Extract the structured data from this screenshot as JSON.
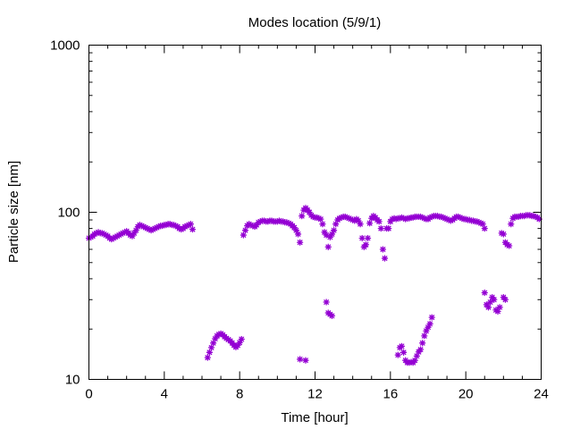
{
  "chart_data": {
    "type": "scatter",
    "title": "Modes location (5/9/1)",
    "xlabel": "Time [hour]",
    "ylabel": "Particle size [nm]",
    "xlim": [
      0,
      24
    ],
    "ylim": [
      10,
      1000
    ],
    "yscale": "log",
    "xticks": [
      0,
      4,
      8,
      12,
      16,
      20,
      24
    ],
    "xtick_labels": [
      "0",
      "4",
      "8",
      "12",
      "16",
      "20",
      "24"
    ],
    "yticks": [
      10,
      100,
      1000
    ],
    "ytick_labels": [
      "10",
      "100",
      "1000"
    ],
    "grid": false,
    "legend": "none",
    "marker": "asterisk",
    "color": "#9400d3",
    "points": [
      [
        0.0,
        70
      ],
      [
        0.1,
        71
      ],
      [
        0.2,
        72
      ],
      [
        0.3,
        74
      ],
      [
        0.4,
        75
      ],
      [
        0.5,
        76
      ],
      [
        0.6,
        75
      ],
      [
        0.7,
        75
      ],
      [
        0.8,
        74
      ],
      [
        0.9,
        73
      ],
      [
        1.0,
        72
      ],
      [
        1.1,
        70
      ],
      [
        1.2,
        69
      ],
      [
        1.3,
        70
      ],
      [
        1.4,
        71
      ],
      [
        1.5,
        72
      ],
      [
        1.6,
        73
      ],
      [
        1.7,
        74
      ],
      [
        1.8,
        75
      ],
      [
        1.9,
        76
      ],
      [
        2.0,
        77
      ],
      [
        2.1,
        75
      ],
      [
        2.2,
        73
      ],
      [
        2.3,
        72
      ],
      [
        2.4,
        75
      ],
      [
        2.5,
        78
      ],
      [
        2.6,
        82
      ],
      [
        2.7,
        84
      ],
      [
        2.8,
        83
      ],
      [
        2.9,
        82
      ],
      [
        3.0,
        81
      ],
      [
        3.1,
        80
      ],
      [
        3.2,
        79
      ],
      [
        3.3,
        78
      ],
      [
        3.4,
        79
      ],
      [
        3.5,
        80
      ],
      [
        3.6,
        81
      ],
      [
        3.7,
        82
      ],
      [
        3.8,
        83
      ],
      [
        3.9,
        83
      ],
      [
        4.0,
        84
      ],
      [
        4.1,
        84
      ],
      [
        4.2,
        85
      ],
      [
        4.3,
        85
      ],
      [
        4.4,
        84
      ],
      [
        4.5,
        84
      ],
      [
        4.6,
        83
      ],
      [
        4.7,
        82
      ],
      [
        4.8,
        80
      ],
      [
        4.9,
        79
      ],
      [
        5.0,
        80
      ],
      [
        5.1,
        82
      ],
      [
        5.2,
        83
      ],
      [
        5.3,
        84
      ],
      [
        5.4,
        85
      ],
      [
        5.5,
        79
      ],
      [
        6.3,
        13.5
      ],
      [
        6.4,
        14.5
      ],
      [
        6.5,
        15.5
      ],
      [
        6.6,
        16.5
      ],
      [
        6.7,
        17.5
      ],
      [
        6.8,
        18.2
      ],
      [
        6.9,
        18.6
      ],
      [
        7.0,
        18.8
      ],
      [
        7.1,
        18.5
      ],
      [
        7.2,
        18
      ],
      [
        7.3,
        17.6
      ],
      [
        7.4,
        17.3
      ],
      [
        7.5,
        17
      ],
      [
        7.6,
        16.5
      ],
      [
        7.7,
        16
      ],
      [
        7.8,
        15.6
      ],
      [
        7.9,
        16
      ],
      [
        8.0,
        16.6
      ],
      [
        8.1,
        17.4
      ],
      [
        8.2,
        73
      ],
      [
        8.3,
        78
      ],
      [
        8.4,
        83
      ],
      [
        8.5,
        85
      ],
      [
        8.6,
        84
      ],
      [
        8.7,
        83
      ],
      [
        8.8,
        82
      ],
      [
        8.9,
        84
      ],
      [
        9.0,
        87
      ],
      [
        9.1,
        88
      ],
      [
        9.2,
        89
      ],
      [
        9.3,
        89
      ],
      [
        9.4,
        88
      ],
      [
        9.5,
        88
      ],
      [
        9.6,
        89
      ],
      [
        9.7,
        89
      ],
      [
        9.8,
        88
      ],
      [
        9.9,
        88
      ],
      [
        10.0,
        88
      ],
      [
        10.1,
        89
      ],
      [
        10.2,
        88
      ],
      [
        10.3,
        88
      ],
      [
        10.4,
        87
      ],
      [
        10.5,
        87
      ],
      [
        10.6,
        86
      ],
      [
        10.7,
        85
      ],
      [
        10.8,
        83
      ],
      [
        10.9,
        81
      ],
      [
        11.0,
        78
      ],
      [
        11.1,
        74
      ],
      [
        11.2,
        66
      ],
      [
        11.3,
        95
      ],
      [
        11.4,
        103
      ],
      [
        11.5,
        106
      ],
      [
        11.6,
        103
      ],
      [
        11.7,
        100
      ],
      [
        11.8,
        96
      ],
      [
        11.9,
        94
      ],
      [
        12.0,
        93
      ],
      [
        12.1,
        93
      ],
      [
        12.2,
        92
      ],
      [
        12.3,
        91
      ],
      [
        12.4,
        85
      ],
      [
        12.5,
        76
      ],
      [
        12.6,
        73
      ],
      [
        12.7,
        62
      ],
      [
        12.8,
        71
      ],
      [
        12.9,
        74
      ],
      [
        13.0,
        78
      ],
      [
        13.1,
        85
      ],
      [
        13.2,
        90
      ],
      [
        13.3,
        92
      ],
      [
        13.4,
        93
      ],
      [
        13.5,
        94
      ],
      [
        13.6,
        94
      ],
      [
        13.7,
        93
      ],
      [
        13.8,
        92
      ],
      [
        13.9,
        91
      ],
      [
        14.0,
        90
      ],
      [
        14.1,
        89
      ],
      [
        14.2,
        91
      ],
      [
        14.3,
        89
      ],
      [
        14.4,
        85
      ],
      [
        14.5,
        70
      ],
      [
        14.6,
        62
      ],
      [
        14.7,
        64
      ],
      [
        14.8,
        70
      ],
      [
        14.9,
        86
      ],
      [
        15.0,
        92
      ],
      [
        15.1,
        95
      ],
      [
        15.2,
        93
      ],
      [
        15.3,
        90
      ],
      [
        15.4,
        88
      ],
      [
        15.5,
        80
      ],
      [
        15.6,
        60
      ],
      [
        15.7,
        53
      ],
      [
        15.8,
        80
      ],
      [
        15.9,
        80
      ],
      [
        16.0,
        88
      ],
      [
        16.1,
        91
      ],
      [
        16.2,
        92
      ],
      [
        16.3,
        91
      ],
      [
        16.4,
        92
      ],
      [
        16.5,
        92
      ],
      [
        16.6,
        93
      ],
      [
        16.7,
        92
      ],
      [
        16.8,
        91
      ],
      [
        16.9,
        92
      ],
      [
        17.0,
        92
      ],
      [
        17.1,
        93
      ],
      [
        17.2,
        93
      ],
      [
        17.3,
        94
      ],
      [
        17.4,
        94
      ],
      [
        17.5,
        94
      ],
      [
        17.6,
        94
      ],
      [
        17.7,
        93
      ],
      [
        17.8,
        92
      ],
      [
        17.9,
        91
      ],
      [
        18.0,
        91
      ],
      [
        18.1,
        93
      ],
      [
        18.2,
        94
      ],
      [
        18.3,
        95
      ],
      [
        18.4,
        95
      ],
      [
        18.5,
        95
      ],
      [
        18.6,
        94
      ],
      [
        18.7,
        94
      ],
      [
        18.8,
        93
      ],
      [
        18.9,
        92
      ],
      [
        19.0,
        91
      ],
      [
        19.1,
        90
      ],
      [
        19.2,
        89
      ],
      [
        19.3,
        90
      ],
      [
        19.4,
        92
      ],
      [
        19.5,
        94
      ],
      [
        19.6,
        94
      ],
      [
        19.7,
        93
      ],
      [
        19.8,
        92
      ],
      [
        19.9,
        91
      ],
      [
        20.0,
        91
      ],
      [
        20.1,
        90
      ],
      [
        20.2,
        90
      ],
      [
        20.3,
        89
      ],
      [
        20.4,
        89
      ],
      [
        20.5,
        88
      ],
      [
        20.6,
        88
      ],
      [
        20.7,
        87
      ],
      [
        20.8,
        86
      ],
      [
        20.9,
        85
      ],
      [
        21.0,
        80
      ],
      [
        11.2,
        13.2
      ],
      [
        11.5,
        13.0
      ],
      [
        12.6,
        29
      ],
      [
        12.7,
        25
      ],
      [
        12.8,
        24.5
      ],
      [
        12.9,
        24
      ],
      [
        16.4,
        14
      ],
      [
        16.5,
        15.5
      ],
      [
        16.6,
        15.8
      ],
      [
        16.7,
        14.5
      ],
      [
        16.8,
        13
      ],
      [
        16.9,
        12.6
      ],
      [
        17.0,
        12.6
      ],
      [
        17.1,
        12.7
      ],
      [
        17.2,
        12.6
      ],
      [
        17.3,
        13
      ],
      [
        17.4,
        13.8
      ],
      [
        17.5,
        14.6
      ],
      [
        17.6,
        15.1
      ],
      [
        17.7,
        16.5
      ],
      [
        17.8,
        18.2
      ],
      [
        17.9,
        19.5
      ],
      [
        18.0,
        20.5
      ],
      [
        18.1,
        21.5
      ],
      [
        18.2,
        23.5
      ],
      [
        21.0,
        33
      ],
      [
        21.1,
        28
      ],
      [
        21.2,
        27
      ],
      [
        21.3,
        29
      ],
      [
        21.4,
        31
      ],
      [
        21.5,
        30
      ],
      [
        21.6,
        26
      ],
      [
        21.7,
        25.5
      ],
      [
        21.8,
        27
      ],
      [
        22.0,
        31
      ],
      [
        22.1,
        30
      ],
      [
        21.9,
        75
      ],
      [
        22.0,
        74
      ],
      [
        22.1,
        66
      ],
      [
        22.2,
        64
      ],
      [
        22.3,
        63
      ],
      [
        22.4,
        85
      ],
      [
        22.5,
        92
      ],
      [
        22.6,
        94
      ],
      [
        22.7,
        94
      ],
      [
        22.8,
        94
      ],
      [
        22.9,
        95
      ],
      [
        23.0,
        95
      ],
      [
        23.1,
        95
      ],
      [
        23.2,
        96
      ],
      [
        23.3,
        96
      ],
      [
        23.4,
        96
      ],
      [
        23.5,
        95
      ],
      [
        23.6,
        95
      ],
      [
        23.7,
        94
      ],
      [
        23.8,
        93
      ],
      [
        23.9,
        91
      ]
    ]
  }
}
